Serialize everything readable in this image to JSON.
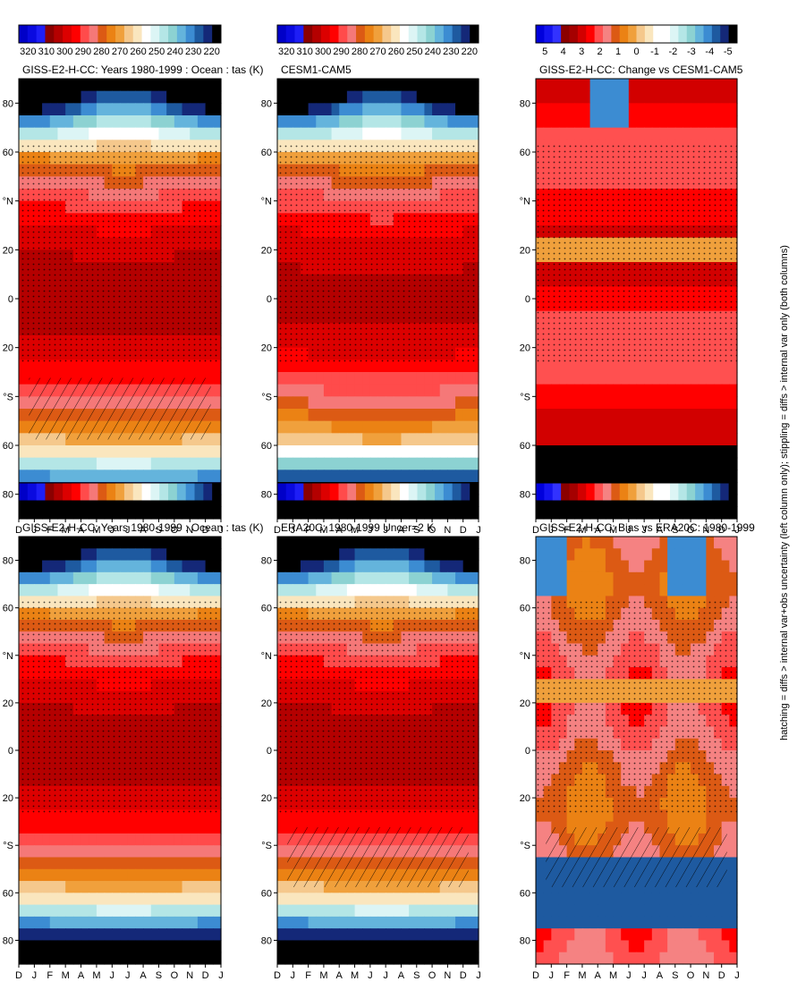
{
  "footer_note": "hatching = diffs > internal var+obs uncertainty (left column only); stippling = diffs > internal var only (both columns)",
  "month_labels": [
    "D",
    "J",
    "F",
    "M",
    "A",
    "M",
    "J",
    "J",
    "A",
    "S",
    "O",
    "N",
    "D",
    "J"
  ],
  "lat_labels": [
    "80",
    "60",
    "°N",
    "20",
    "0",
    "20",
    "°S",
    "60",
    "80"
  ],
  "palettes": {
    "abs": [
      "#0000c8",
      "#0a0ae0",
      "#1e1ef6",
      "#8b0000",
      "#b40000",
      "#dc0000",
      "#ff0000",
      "#ff4b4b",
      "#f57878",
      "#dc5a14",
      "#eb8214",
      "#f0a03c",
      "#f5c88c",
      "#fae6be",
      "#ffffff",
      "#dcf5f5",
      "#b4e6e6",
      "#8cd2d2",
      "#64b4dc",
      "#3c8cd2",
      "#1e5aa0",
      "#142878",
      "#000000"
    ],
    "diff": [
      "#0000dc",
      "#1414f0",
      "#3232ff",
      "#8b0000",
      "#a50000",
      "#d20000",
      "#ff0000",
      "#ff5050",
      "#f58282",
      "#dc5a14",
      "#eb8214",
      "#f0a03c",
      "#f5c88c",
      "#fae6be",
      "#ffffff",
      "#ffffff",
      "#dcf5f5",
      "#b4e6e6",
      "#8cd2d2",
      "#64b4dc",
      "#3c8cd2",
      "#1e5aa0",
      "#142878",
      "#000000"
    ]
  },
  "colorbars": {
    "abs_ticks": [
      "320",
      "310",
      "300",
      "290",
      "280",
      "270",
      "260",
      "250",
      "240",
      "230",
      "220"
    ],
    "diff_ticks": [
      "5",
      "4",
      "3",
      "2",
      "1",
      "0",
      "-1",
      "-2",
      "-3",
      "-4",
      "-5"
    ]
  },
  "chart_data": [
    {
      "id": "p1",
      "type": "heatmap",
      "title": "GISS-E2-H-CC: Years 1980-1999 : Ocean : tas (K)",
      "variable": "tas",
      "units": "K",
      "x_axis": "month",
      "y_axis": "latitude",
      "ylim": [
        -90,
        90
      ],
      "colorbar_range": [
        220,
        320
      ],
      "hatching": true,
      "stippling": true
    },
    {
      "id": "p2",
      "type": "heatmap",
      "title": "GISS-E2-H-CC: Years 1980-1999 : Ocean : tas (K)",
      "variable": "tas",
      "units": "K",
      "x_axis": "month",
      "y_axis": "latitude",
      "ylim": [
        -90,
        90
      ],
      "colorbar_range": [
        220,
        320
      ],
      "hatching": false,
      "stippling": true
    },
    {
      "id": "p3",
      "type": "heatmap",
      "title": "ERA20C: 1980-1999 Uncer=2 K",
      "units": "K",
      "x_axis": "month",
      "y_axis": "latitude",
      "ylim": [
        -90,
        90
      ],
      "colorbar_range": [
        220,
        320
      ],
      "hatching": true,
      "stippling": true
    },
    {
      "id": "p4",
      "type": "heatmap",
      "title": "CESM1-CAM5",
      "units": "K",
      "x_axis": "month",
      "y_axis": "latitude",
      "ylim": [
        -90,
        90
      ],
      "colorbar_range": [
        220,
        320
      ],
      "hatching": false,
      "stippling": true
    },
    {
      "id": "p5",
      "type": "heatmap",
      "title": "GISS-E2-H-CC: Bias vs ERA20C: 1980-1999",
      "units": "K",
      "x_axis": "month",
      "y_axis": "latitude",
      "ylim": [
        -90,
        90
      ],
      "colorbar_range": [
        -5,
        5
      ],
      "hatching": true,
      "stippling": true
    },
    {
      "id": "p6",
      "type": "heatmap",
      "title": "GISS-E2-H-CC: Change vs CESM1-CAM5",
      "units": "K",
      "x_axis": "month",
      "y_axis": "latitude",
      "ylim": [
        -90,
        90
      ],
      "colorbar_range": [
        -5,
        5
      ],
      "hatching": false,
      "stippling": true
    }
  ]
}
